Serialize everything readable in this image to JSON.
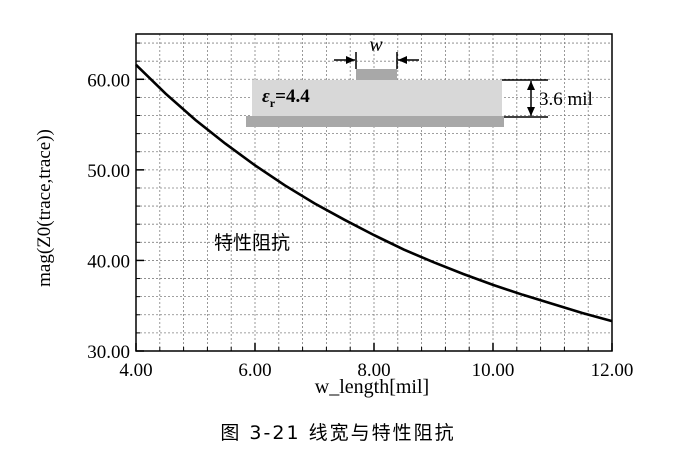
{
  "chart_data": {
    "type": "line",
    "title": "",
    "xlabel": "w_length[mil]",
    "ylabel": "mag(Z0(trace,trace))",
    "xlim": [
      4.0,
      12.0
    ],
    "ylim": [
      30.0,
      65.0
    ],
    "x_ticks": [
      4,
      6,
      8,
      10,
      12
    ],
    "x_tick_labels": [
      "4.00",
      "6.00",
      "8.00",
      "10.00",
      "12.00"
    ],
    "y_ticks": [
      30,
      40,
      50,
      60
    ],
    "y_tick_labels": [
      "30.00",
      "40.00",
      "50.00",
      "60.00"
    ],
    "grid": true,
    "series": [
      {
        "x": [
          4.0,
          4.5,
          5.0,
          5.5,
          6.0,
          6.5,
          7.0,
          7.5,
          8.0,
          8.5,
          9.0,
          9.5,
          10.0,
          10.5,
          11.0,
          11.5,
          12.0
        ],
        "y": [
          61.6,
          58.4,
          55.5,
          52.9,
          50.5,
          48.3,
          46.3,
          44.5,
          42.8,
          41.2,
          39.8,
          38.5,
          37.3,
          36.2,
          35.2,
          34.2,
          33.3
        ]
      }
    ],
    "annotations": {
      "curve_label": "特性阻抗",
      "width_label": "w",
      "permittivity_symbol": "ε",
      "permittivity_subscript": "r",
      "permittivity_value": "=4.4",
      "height_label": "3.6 mil"
    }
  },
  "caption": "图 3-21   线宽与特性阻抗",
  "colors": {
    "curve": "#000000",
    "grid": "#808080",
    "trace_fill": "#a8a8a8",
    "dielectric_fill": "#d8d8d8"
  }
}
